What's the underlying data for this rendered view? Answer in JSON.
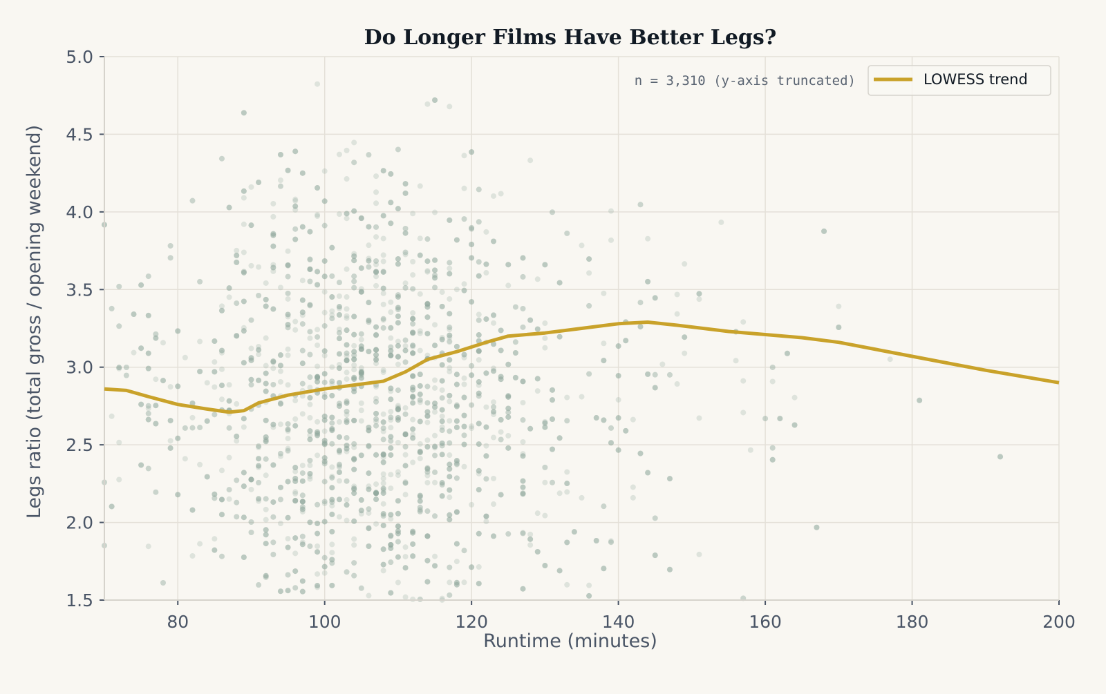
{
  "chart_data": {
    "type": "scatter",
    "title": "Do Longer Films Have Better Legs?",
    "xlabel": "Runtime (minutes)",
    "ylabel": "Legs ratio (total gross / opening weekend)",
    "xlim": [
      70,
      200
    ],
    "ylim": [
      1.5,
      5.0
    ],
    "xticks": [
      "80",
      "100",
      "120",
      "140",
      "160",
      "180",
      "200"
    ],
    "yticks": [
      "1.5",
      "2.0",
      "2.5",
      "3.0",
      "3.5",
      "4.0",
      "4.5",
      "5.0"
    ],
    "grid": true,
    "annotation": "n = 3,310  (y-axis truncated)",
    "legend": {
      "placement": "top-right",
      "entries": [
        "LOWESS trend"
      ]
    },
    "colors": {
      "points": "#8fa89a",
      "trend": "#c9a22a",
      "background": "#f9f7f2"
    },
    "scatter_summary": {
      "n": 3310,
      "dense_runtime_range": [
        85,
        125
      ],
      "dense_legs_range": [
        1.8,
        3.6
      ]
    },
    "series": [
      {
        "name": "LOWESS trend",
        "type": "line",
        "x": [
          70,
          73,
          76,
          80,
          84,
          87,
          89,
          91,
          95,
          100,
          108,
          111,
          114,
          118,
          122,
          125,
          130,
          135,
          140,
          144,
          148,
          155,
          165,
          170,
          180,
          190,
          200
        ],
        "y": [
          2.86,
          2.85,
          2.81,
          2.76,
          2.73,
          2.71,
          2.72,
          2.77,
          2.82,
          2.86,
          2.91,
          2.97,
          3.05,
          3.1,
          3.16,
          3.2,
          3.22,
          3.25,
          3.28,
          3.29,
          3.27,
          3.23,
          3.19,
          3.16,
          3.07,
          2.98,
          2.9
        ]
      }
    ]
  }
}
